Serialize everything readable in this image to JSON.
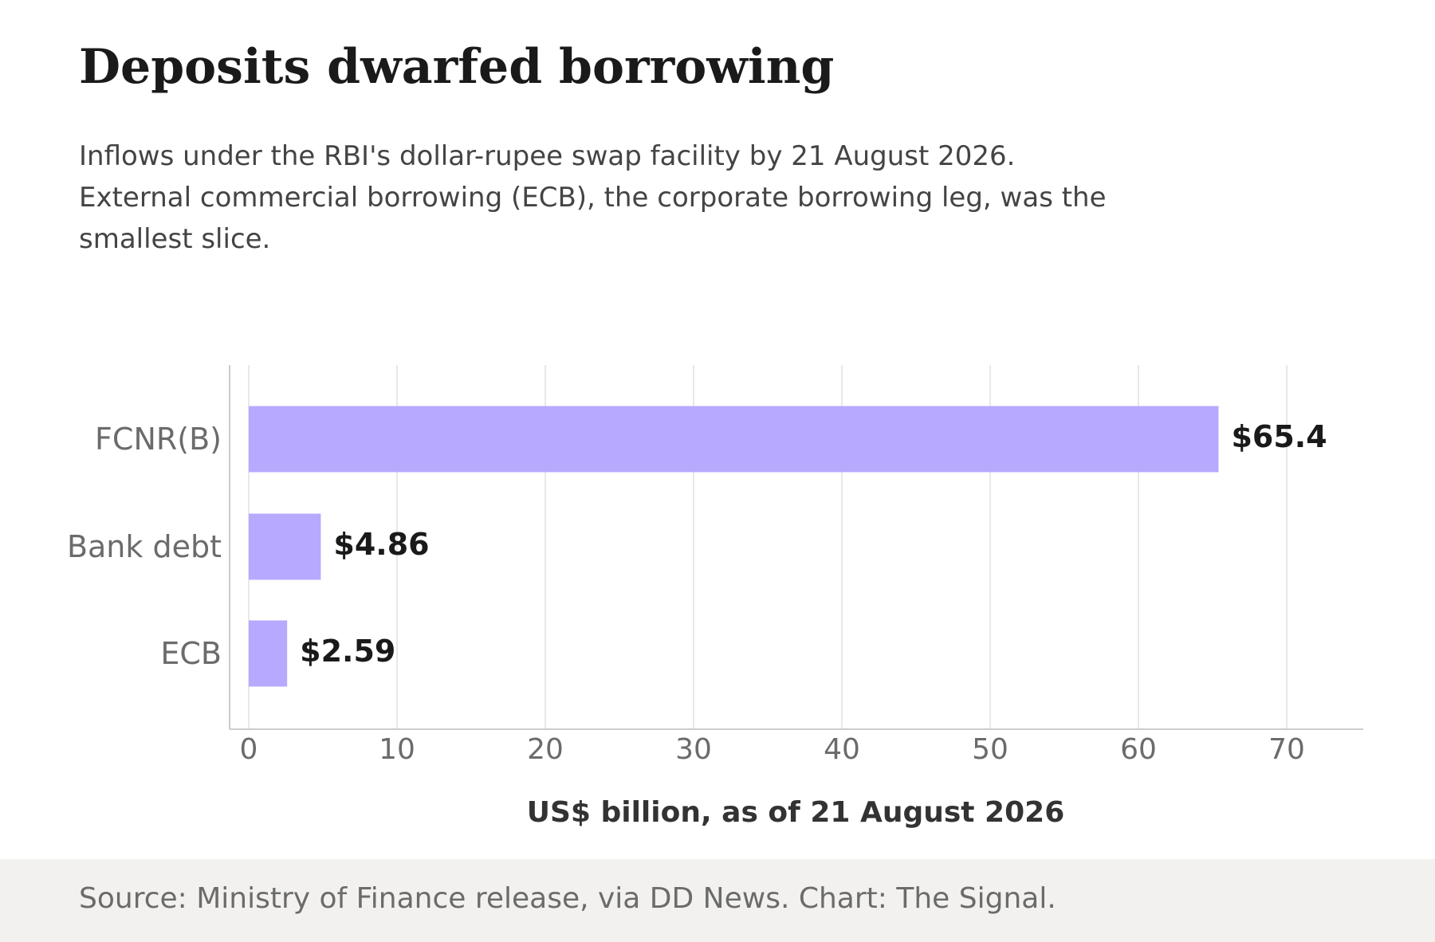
{
  "title": "Deposits dwarfed borrowing",
  "subtitle": "Inflows under the RBI's dollar-rupee swap facility by 21 August 2026. External commercial borrowing (ECB), the corporate borrowing leg, was the smallest slice.",
  "source": "Source: Ministry of Finance release, via DD News. Chart: The Signal.",
  "colors": {
    "bar": "#b7a9fd",
    "grid": "#e0e0e0",
    "axis": "#cccccc",
    "tick_text": "#6b6b6b",
    "value_text": "#1a1a1a",
    "footer_bg": "#f2f1ef"
  },
  "chart_data": {
    "type": "bar",
    "orientation": "horizontal",
    "categories": [
      "FCNR(B)",
      "Bank debt",
      "ECB"
    ],
    "values": [
      65.4,
      4.86,
      2.59
    ],
    "value_labels": [
      "$65.4",
      "$4.86",
      "$2.59"
    ],
    "xlabel": "US$ billion, as of 21 August 2026",
    "ylabel": "",
    "xlim": [
      0,
      72
    ],
    "xticks": [
      0,
      10,
      20,
      30,
      40,
      50,
      60,
      70
    ],
    "grid": "vertical",
    "legend": "none"
  }
}
